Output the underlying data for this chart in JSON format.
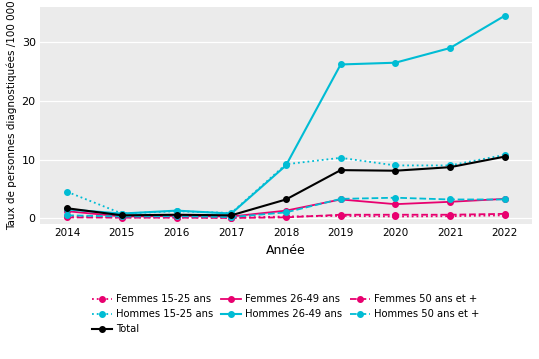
{
  "years": [
    2014,
    2015,
    2016,
    2017,
    2018,
    2019,
    2020,
    2021,
    2022
  ],
  "femmes_15_25": [
    0.3,
    0.15,
    0.15,
    0.1,
    0.3,
    0.4,
    0.3,
    0.35,
    0.5
  ],
  "hommes_15_25": [
    4.5,
    0.8,
    1.2,
    0.9,
    9.2,
    10.3,
    9.0,
    9.0,
    10.8
  ],
  "total": [
    1.7,
    0.5,
    0.6,
    0.5,
    3.2,
    8.2,
    8.1,
    8.7,
    10.5
  ],
  "femmes_26_49": [
    1.2,
    0.3,
    0.4,
    0.3,
    1.3,
    3.2,
    2.4,
    2.8,
    3.3
  ],
  "hommes_26_49": [
    1.5,
    0.8,
    1.3,
    0.8,
    9.0,
    26.2,
    26.5,
    29.0,
    34.5
  ],
  "femmes_50plus": [
    0.15,
    0.1,
    0.1,
    0.05,
    0.15,
    0.6,
    0.6,
    0.6,
    0.75
  ],
  "hommes_50plus": [
    0.5,
    0.3,
    0.35,
    0.2,
    1.0,
    3.3,
    3.5,
    3.2,
    3.2
  ],
  "color_femmes": "#e8006f",
  "color_hommes": "#00bcd4",
  "color_total": "#000000",
  "ylabel": "Taux de personnes diagnostiquées /100 000",
  "xlabel": "Année",
  "ylim": [
    -1,
    36
  ],
  "yticks": [
    0,
    10,
    20,
    30
  ],
  "background_color": "#ebebeb"
}
